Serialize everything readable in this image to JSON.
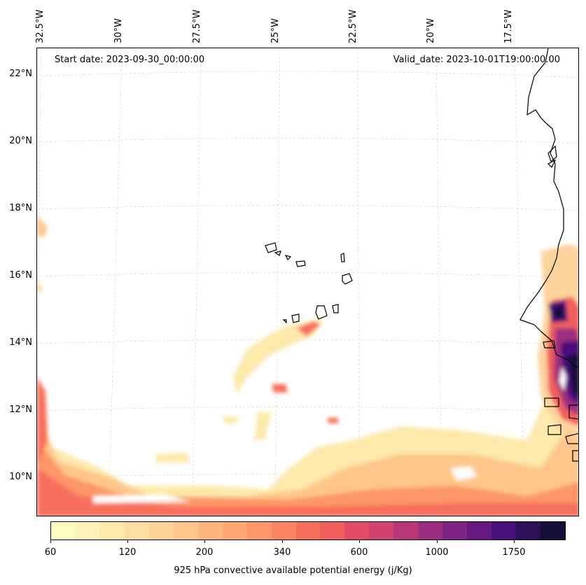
{
  "map": {
    "start_date": "Start date: 2023-09-30_00:00:00",
    "valid_date": "Valid_date: 2023-10-01T19:00:00.00",
    "lon_labels": [
      "32.5°W",
      "30°W",
      "27.5°W",
      "25°W",
      "22.5°W",
      "20°W",
      "17.5°W"
    ],
    "lat_labels": [
      "22°N",
      "20°N",
      "18°N",
      "16°N",
      "14°N",
      "12°N",
      "10°N"
    ],
    "region": "Cabo Verde / West Africa coast",
    "variable": "convective available potential energy",
    "level": "925 hPa"
  },
  "colorbar": {
    "label": "925 hPa convective available potential energy (j/Kg)",
    "tick_labels": [
      "60",
      "120",
      "200",
      "340",
      "600",
      "1000",
      "1750"
    ],
    "colormap": "magma_r",
    "colors": [
      "#fcfdbf",
      "#fcf4b6",
      "#fde9aa",
      "#fddea0",
      "#fed395",
      "#fec68a",
      "#feb57d",
      "#fea873",
      "#fd9668",
      "#fb8561",
      "#f7705c",
      "#f05f5e",
      "#e14d66",
      "#d1426f",
      "#b73779",
      "#9c2e7f",
      "#7e2482",
      "#641a80",
      "#481078",
      "#2a1158",
      "#160e3a"
    ]
  }
}
